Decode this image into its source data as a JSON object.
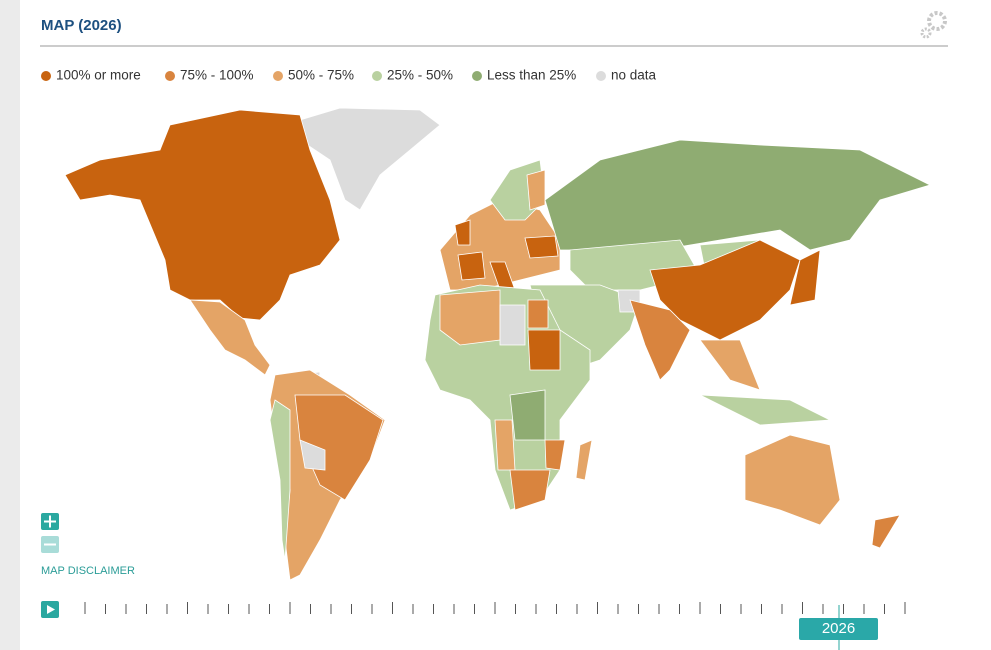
{
  "header": {
    "title": "MAP (2026)"
  },
  "legend": [
    {
      "label": "100% or more",
      "color": "#c8630f"
    },
    {
      "label": "75% - 100%",
      "color": "#d9843e"
    },
    {
      "label": "50% - 75%",
      "color": "#e4a466"
    },
    {
      "label": "25% - 50%",
      "color": "#b9d1a0"
    },
    {
      "label": "Less than 25%",
      "color": "#8fac72"
    },
    {
      "label": "no data",
      "color": "#dcdcdc"
    }
  ],
  "controls": {
    "disclaimer": "MAP DISCLAIMER",
    "year": "2026"
  }
}
